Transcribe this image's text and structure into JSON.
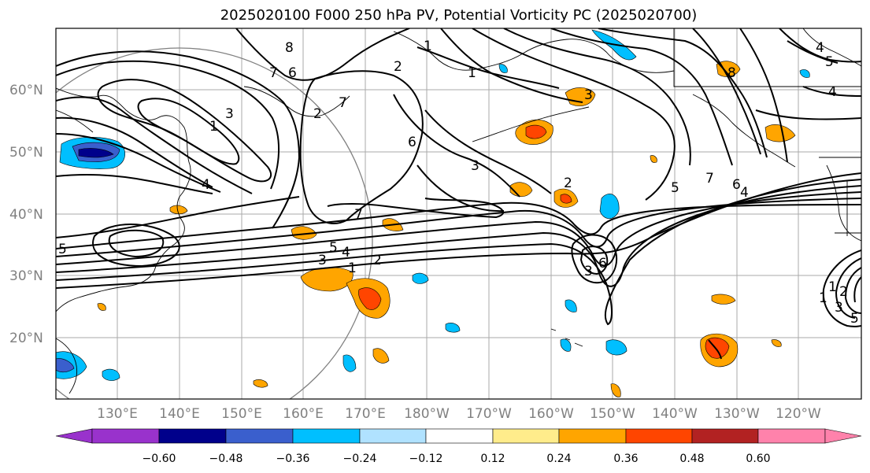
{
  "title": "2025020100 F000 250 hPa PV, Potential Vorticity PC (2025020700)",
  "latitude_labels": [
    "60°N",
    "50°N",
    "40°N",
    "30°N",
    "20°N"
  ],
  "longitude_labels": [
    "130°E",
    "140°E",
    "150°E",
    "160°E",
    "170°E",
    "180°W",
    "170°W",
    "160°W",
    "150°W",
    "140°W",
    "130°W",
    "120°W"
  ],
  "colorbar": {
    "tick_labels": [
      "−0.60",
      "−0.48",
      "−0.36",
      "−0.24",
      "−0.12",
      "0.12",
      "0.24",
      "0.36",
      "0.48",
      "0.60"
    ],
    "colors": [
      "#9932cc",
      "#00008b",
      "#3a5fcd",
      "#00bfff",
      "#b0e2ff",
      "#ffffff",
      "#ffec8b",
      "#ffa500",
      "#ff4500",
      "#b22222",
      "#ff82ab"
    ]
  },
  "contour_labels": [
    "8",
    "7",
    "6",
    "1",
    "1",
    "2",
    "3",
    "7",
    "2",
    "8",
    "4",
    "5",
    "4",
    "3",
    "1",
    "7",
    "6",
    "3",
    "5",
    "7",
    "6",
    "4",
    "5",
    "4",
    "3",
    "2",
    "1",
    "3",
    "2",
    "6",
    "4",
    "5",
    "1",
    "2",
    "1",
    "3",
    "5"
  ]
}
